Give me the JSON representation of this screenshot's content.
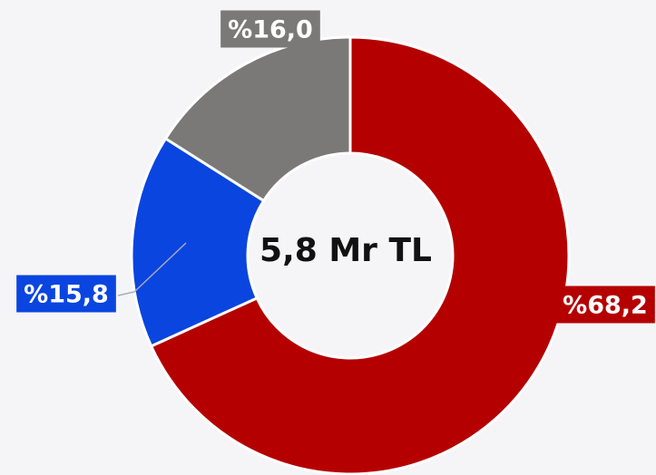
{
  "chart_data": {
    "type": "pie",
    "donut": true,
    "values": [
      68.2,
      15.8,
      16.0
    ],
    "value_labels": [
      "%68,2",
      "%15,8",
      "%16,0"
    ],
    "colors": [
      "#b50000",
      "#0a45e0",
      "#7b7977"
    ],
    "annotation": "5,8 Mr TL"
  }
}
